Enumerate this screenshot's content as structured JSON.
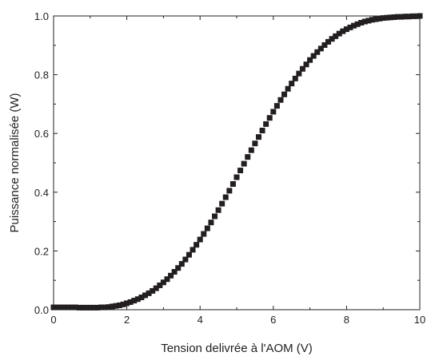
{
  "chart_data": {
    "type": "scatter",
    "xlabel": "Tension delivrée à l'AOM (V)",
    "ylabel": "Puissance normalisée (W)",
    "xlim": [
      0,
      10
    ],
    "ylim": [
      0,
      1.0
    ],
    "x_ticks": [
      0,
      2,
      4,
      6,
      8,
      10
    ],
    "x_tick_labels": [
      "0",
      "2",
      "4",
      "6",
      "8",
      "10"
    ],
    "y_ticks": [
      0.0,
      0.2,
      0.4,
      0.6,
      0.8,
      1.0
    ],
    "y_tick_labels": [
      "0.0",
      "0.2",
      "0.4",
      "0.6",
      "0.8",
      "1.0"
    ],
    "grid": false,
    "marker": "square",
    "series": [
      {
        "x": [
          0.0,
          0.1,
          0.2,
          0.3,
          0.4,
          0.5,
          0.6,
          0.7,
          0.8,
          0.9,
          1.0,
          1.1,
          1.2,
          1.3,
          1.4,
          1.5,
          1.6,
          1.7,
          1.8,
          1.9,
          2.0,
          2.1,
          2.2,
          2.3,
          2.4,
          2.5,
          2.6,
          2.7,
          2.8,
          2.9,
          3.0,
          3.1,
          3.2,
          3.3,
          3.4,
          3.5,
          3.6,
          3.7,
          3.8,
          3.9,
          4.0,
          4.1,
          4.2,
          4.3,
          4.4,
          4.5,
          4.6,
          4.7,
          4.8,
          4.9,
          5.0,
          5.1,
          5.2,
          5.3,
          5.4,
          5.5,
          5.6,
          5.7,
          5.8,
          5.9,
          6.0,
          6.1,
          6.2,
          6.3,
          6.4,
          6.5,
          6.6,
          6.7,
          6.8,
          6.9,
          7.0,
          7.1,
          7.2,
          7.3,
          7.4,
          7.5,
          7.6,
          7.7,
          7.8,
          7.9,
          8.0,
          8.1,
          8.2,
          8.3,
          8.4,
          8.5,
          8.6,
          8.7,
          8.8,
          8.9,
          9.0,
          9.1,
          9.2,
          9.3,
          9.4,
          9.5,
          9.6,
          9.7,
          9.8,
          9.9,
          10.0
        ],
        "y": [
          0.008,
          0.008,
          0.008,
          0.008,
          0.008,
          0.008,
          0.008,
          0.007,
          0.007,
          0.007,
          0.007,
          0.007,
          0.007,
          0.008,
          0.008,
          0.009,
          0.011,
          0.013,
          0.015,
          0.018,
          0.022,
          0.026,
          0.031,
          0.036,
          0.042,
          0.049,
          0.056,
          0.064,
          0.073,
          0.083,
          0.093,
          0.104,
          0.116,
          0.129,
          0.142,
          0.156,
          0.171,
          0.187,
          0.204,
          0.221,
          0.239,
          0.258,
          0.277,
          0.297,
          0.318,
          0.339,
          0.361,
          0.383,
          0.405,
          0.428,
          0.451,
          0.474,
          0.497,
          0.52,
          0.543,
          0.566,
          0.588,
          0.61,
          0.632,
          0.653,
          0.674,
          0.694,
          0.714,
          0.733,
          0.752,
          0.77,
          0.787,
          0.804,
          0.82,
          0.835,
          0.85,
          0.864,
          0.877,
          0.889,
          0.901,
          0.912,
          0.922,
          0.931,
          0.94,
          0.948,
          0.955,
          0.961,
          0.967,
          0.972,
          0.977,
          0.981,
          0.984,
          0.987,
          0.989,
          0.991,
          0.993,
          0.994,
          0.995,
          0.996,
          0.997,
          0.997,
          0.998,
          0.998,
          0.999,
          0.999,
          1.0
        ]
      }
    ],
    "colors": {
      "marker": "#231f20",
      "axis": "#222222"
    }
  }
}
